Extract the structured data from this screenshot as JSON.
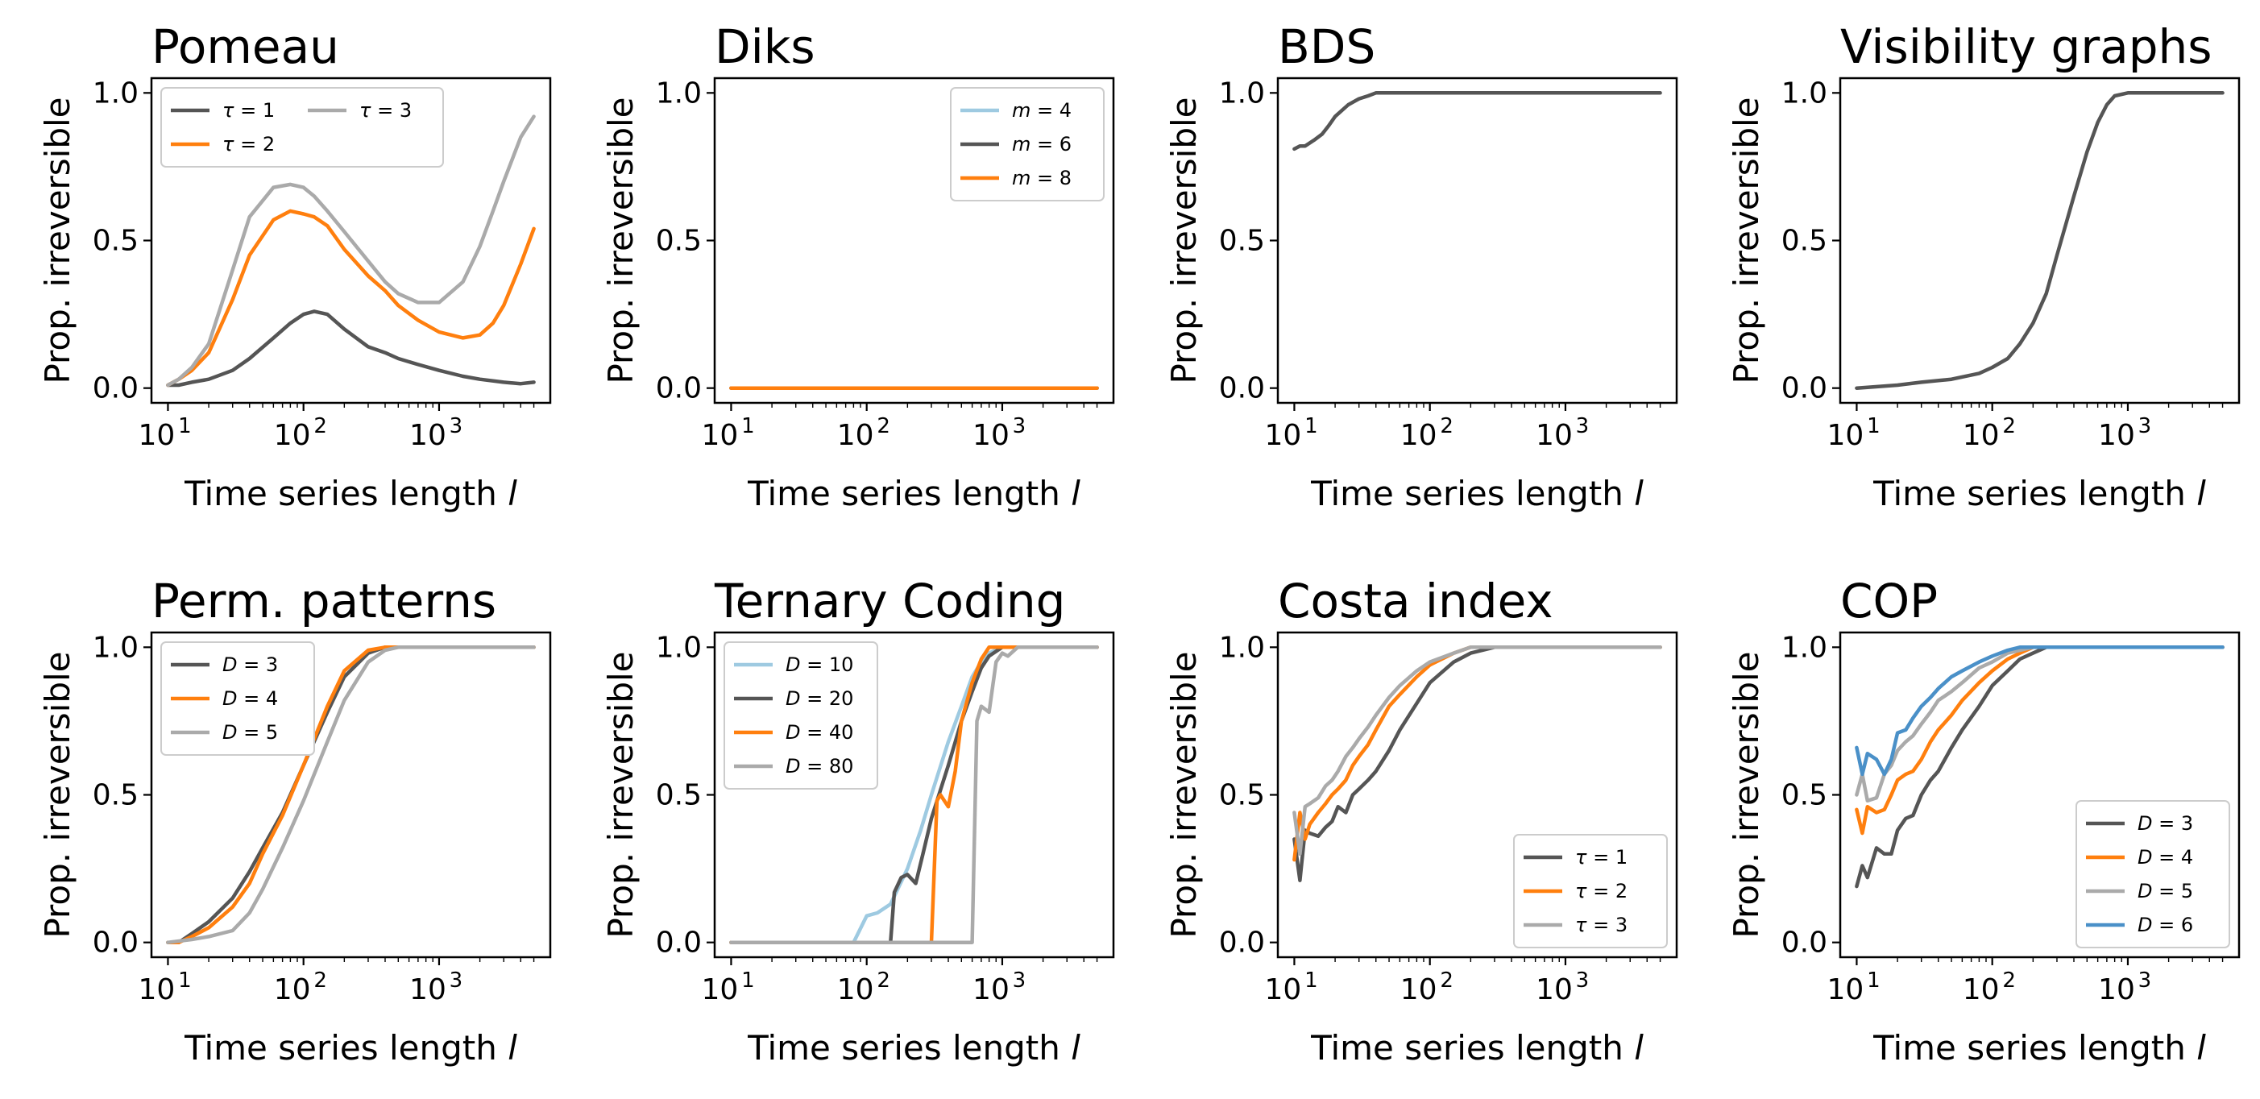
{
  "colors": {
    "dark": "#555555",
    "orange": "#ff7f0e",
    "gray": "#aaaaaa",
    "lightblue": "#9ecae1",
    "blue": "#4a90c8"
  },
  "chart_data": [
    {
      "type": "line",
      "title": "Pomeau",
      "xlabel": "Time series length l",
      "ylabel": "Prop. irreversible",
      "xscale": "log",
      "xlim": [
        10,
        5000
      ],
      "ylim": [
        0,
        1
      ],
      "yticks": [
        "0.0",
        "0.5",
        "1.0"
      ],
      "legend_position": "top-left",
      "legend_cols": 2,
      "series": [
        {
          "name": "τ = 1",
          "color": "#555555",
          "x": [
            10,
            12,
            15,
            20,
            30,
            40,
            60,
            80,
            100,
            120,
            150,
            200,
            300,
            400,
            500,
            700,
            1000,
            1500,
            2000,
            3000,
            4000,
            5000
          ],
          "y": [
            0.01,
            0.01,
            0.02,
            0.03,
            0.06,
            0.1,
            0.17,
            0.22,
            0.25,
            0.26,
            0.25,
            0.2,
            0.14,
            0.12,
            0.1,
            0.08,
            0.06,
            0.04,
            0.03,
            0.02,
            0.015,
            0.02
          ]
        },
        {
          "name": "τ = 2",
          "color": "#ff7f0e",
          "x": [
            10,
            12,
            15,
            20,
            30,
            40,
            60,
            80,
            100,
            120,
            150,
            200,
            300,
            400,
            500,
            700,
            1000,
            1500,
            2000,
            2500,
            3000,
            4000,
            5000
          ],
          "y": [
            0.01,
            0.03,
            0.06,
            0.12,
            0.3,
            0.45,
            0.57,
            0.6,
            0.59,
            0.58,
            0.55,
            0.47,
            0.38,
            0.33,
            0.28,
            0.23,
            0.19,
            0.17,
            0.18,
            0.22,
            0.28,
            0.42,
            0.54
          ]
        },
        {
          "name": "τ = 3",
          "color": "#aaaaaa",
          "x": [
            10,
            12,
            15,
            20,
            30,
            40,
            60,
            80,
            100,
            120,
            150,
            200,
            300,
            400,
            500,
            700,
            1000,
            1500,
            2000,
            2500,
            3000,
            4000,
            5000
          ],
          "y": [
            0.01,
            0.03,
            0.07,
            0.15,
            0.4,
            0.58,
            0.68,
            0.69,
            0.68,
            0.65,
            0.6,
            0.53,
            0.43,
            0.36,
            0.32,
            0.29,
            0.29,
            0.36,
            0.48,
            0.6,
            0.7,
            0.85,
            0.92
          ]
        }
      ]
    },
    {
      "type": "line",
      "title": "Diks",
      "xlabel": "Time series length l",
      "ylabel": "Prop. irreversible",
      "xscale": "log",
      "xlim": [
        10,
        5000
      ],
      "ylim": [
        0,
        1
      ],
      "yticks": [
        "0.0",
        "0.5",
        "1.0"
      ],
      "legend_position": "top-right",
      "legend_cols": 1,
      "series": [
        {
          "name": "m = 4",
          "color": "#9ecae1",
          "x": [
            10,
            5000
          ],
          "y": [
            0,
            0
          ]
        },
        {
          "name": "m = 6",
          "color": "#555555",
          "x": [
            10,
            5000
          ],
          "y": [
            0,
            0
          ]
        },
        {
          "name": "m = 8",
          "color": "#ff7f0e",
          "x": [
            10,
            5000
          ],
          "y": [
            0,
            0
          ]
        }
      ]
    },
    {
      "type": "line",
      "title": "BDS",
      "xlabel": "Time series length l",
      "ylabel": "Prop. irreversible",
      "xscale": "log",
      "xlim": [
        10,
        5000
      ],
      "ylim": [
        0,
        1
      ],
      "yticks": [
        "0.0",
        "0.5",
        "1.0"
      ],
      "legend_position": "none",
      "legend_cols": 1,
      "series": [
        {
          "name": "BDS",
          "color": "#555555",
          "x": [
            10,
            11,
            12,
            14,
            16,
            18,
            20,
            25,
            30,
            35,
            40,
            50,
            100,
            1000,
            5000
          ],
          "y": [
            0.81,
            0.82,
            0.82,
            0.84,
            0.86,
            0.89,
            0.92,
            0.96,
            0.98,
            0.99,
            1.0,
            1.0,
            1.0,
            1.0,
            1.0
          ]
        }
      ]
    },
    {
      "type": "line",
      "title": "Visibility graphs",
      "xlabel": "Time series length l",
      "ylabel": "Prop. irreversible",
      "xscale": "log",
      "xlim": [
        10,
        5000
      ],
      "ylim": [
        0,
        1
      ],
      "yticks": [
        "0.0",
        "0.5",
        "1.0"
      ],
      "legend_position": "none",
      "legend_cols": 1,
      "series": [
        {
          "name": "Visibility graphs",
          "color": "#555555",
          "x": [
            10,
            20,
            30,
            50,
            80,
            100,
            130,
            160,
            200,
            250,
            300,
            400,
            500,
            600,
            700,
            800,
            1000,
            1500,
            5000
          ],
          "y": [
            0.0,
            0.01,
            0.02,
            0.03,
            0.05,
            0.07,
            0.1,
            0.15,
            0.22,
            0.32,
            0.45,
            0.65,
            0.8,
            0.9,
            0.96,
            0.99,
            1.0,
            1.0,
            1.0
          ]
        }
      ]
    },
    {
      "type": "line",
      "title": "Perm. patterns",
      "xlabel": "Time series length l",
      "ylabel": "Prop. irreversible",
      "xscale": "log",
      "xlim": [
        10,
        5000
      ],
      "ylim": [
        0,
        1
      ],
      "yticks": [
        "0.0",
        "0.5",
        "1.0"
      ],
      "legend_position": "top-left",
      "legend_cols": 1,
      "series": [
        {
          "name": "D = 3",
          "color": "#555555",
          "x": [
            10,
            12,
            15,
            20,
            30,
            40,
            50,
            70,
            100,
            150,
            200,
            300,
            400,
            500,
            5000
          ],
          "y": [
            0.0,
            0.0,
            0.03,
            0.07,
            0.15,
            0.24,
            0.32,
            0.44,
            0.6,
            0.78,
            0.9,
            0.98,
            1.0,
            1.0,
            1.0
          ]
        },
        {
          "name": "D = 4",
          "color": "#ff7f0e",
          "x": [
            10,
            12,
            15,
            20,
            30,
            40,
            50,
            70,
            100,
            150,
            200,
            300,
            400,
            500,
            5000
          ],
          "y": [
            0.0,
            0.0,
            0.02,
            0.05,
            0.12,
            0.2,
            0.3,
            0.43,
            0.6,
            0.8,
            0.92,
            0.99,
            1.0,
            1.0,
            1.0
          ]
        },
        {
          "name": "D = 5",
          "color": "#aaaaaa",
          "x": [
            10,
            15,
            20,
            30,
            40,
            50,
            70,
            100,
            150,
            200,
            300,
            400,
            500,
            700,
            5000
          ],
          "y": [
            0.0,
            0.01,
            0.02,
            0.04,
            0.1,
            0.18,
            0.32,
            0.48,
            0.68,
            0.82,
            0.95,
            0.99,
            1.0,
            1.0,
            1.0
          ]
        }
      ]
    },
    {
      "type": "line",
      "title": "Ternary Coding",
      "xlabel": "Time series length l",
      "ylabel": "Prop. irreversible",
      "xscale": "log",
      "xlim": [
        10,
        5000
      ],
      "ylim": [
        0,
        1
      ],
      "yticks": [
        "0.0",
        "0.5",
        "1.0"
      ],
      "legend_position": "top-left",
      "legend_cols": 1,
      "series": [
        {
          "name": "D = 10",
          "color": "#9ecae1",
          "x": [
            10,
            80,
            100,
            120,
            150,
            200,
            250,
            300,
            400,
            500,
            600,
            700,
            800,
            1000,
            5000
          ],
          "y": [
            0.0,
            0.0,
            0.09,
            0.1,
            0.13,
            0.25,
            0.38,
            0.5,
            0.68,
            0.8,
            0.9,
            0.95,
            0.98,
            1.0,
            1.0
          ]
        },
        {
          "name": "D = 20",
          "color": "#555555",
          "x": [
            10,
            150,
            160,
            180,
            200,
            230,
            260,
            300,
            400,
            500,
            600,
            700,
            800,
            1000,
            5000
          ],
          "y": [
            0.0,
            0.0,
            0.17,
            0.22,
            0.23,
            0.2,
            0.3,
            0.42,
            0.6,
            0.75,
            0.85,
            0.93,
            0.97,
            1.0,
            1.0
          ]
        },
        {
          "name": "D = 40",
          "color": "#ff7f0e",
          "x": [
            10,
            300,
            330,
            350,
            400,
            450,
            500,
            600,
            700,
            800,
            900,
            1000,
            5000
          ],
          "y": [
            0.0,
            0.0,
            0.48,
            0.5,
            0.46,
            0.58,
            0.75,
            0.88,
            0.96,
            1.0,
            1.0,
            1.0,
            1.0
          ]
        },
        {
          "name": "D = 80",
          "color": "#aaaaaa",
          "x": [
            10,
            600,
            650,
            700,
            800,
            900,
            1000,
            1100,
            1300,
            1600,
            2000,
            5000
          ],
          "y": [
            0.0,
            0.0,
            0.75,
            0.8,
            0.78,
            0.95,
            0.98,
            0.97,
            1.0,
            1.0,
            1.0,
            1.0
          ]
        }
      ]
    },
    {
      "type": "line",
      "title": "Costa index",
      "xlabel": "Time series length l",
      "ylabel": "Prop. irreversible",
      "xscale": "log",
      "xlim": [
        10,
        5000
      ],
      "ylim": [
        0,
        1
      ],
      "yticks": [
        "0.0",
        "0.5",
        "1.0"
      ],
      "legend_position": "bottom-right",
      "legend_cols": 1,
      "series": [
        {
          "name": "τ = 1",
          "color": "#555555",
          "x": [
            10,
            11,
            12,
            13,
            15,
            17,
            19,
            21,
            24,
            27,
            30,
            35,
            40,
            50,
            60,
            80,
            100,
            150,
            200,
            300,
            400,
            500,
            5000
          ],
          "y": [
            0.35,
            0.21,
            0.38,
            0.37,
            0.36,
            0.39,
            0.41,
            0.46,
            0.44,
            0.5,
            0.52,
            0.55,
            0.58,
            0.65,
            0.72,
            0.81,
            0.88,
            0.95,
            0.98,
            1.0,
            1.0,
            1.0,
            1.0
          ]
        },
        {
          "name": "τ = 2",
          "color": "#ff7f0e",
          "x": [
            10,
            11,
            12,
            13,
            15,
            17,
            19,
            21,
            24,
            27,
            30,
            35,
            40,
            50,
            60,
            80,
            100,
            150,
            200,
            300,
            5000
          ],
          "y": [
            0.28,
            0.44,
            0.35,
            0.4,
            0.44,
            0.47,
            0.5,
            0.52,
            0.55,
            0.6,
            0.63,
            0.67,
            0.72,
            0.8,
            0.84,
            0.9,
            0.94,
            0.98,
            1.0,
            1.0,
            1.0
          ]
        },
        {
          "name": "τ = 3",
          "color": "#aaaaaa",
          "x": [
            10,
            11,
            12,
            13,
            15,
            17,
            19,
            21,
            24,
            27,
            30,
            35,
            40,
            50,
            60,
            80,
            100,
            150,
            200,
            300,
            5000
          ],
          "y": [
            0.44,
            0.3,
            0.46,
            0.47,
            0.49,
            0.53,
            0.55,
            0.58,
            0.63,
            0.66,
            0.69,
            0.73,
            0.77,
            0.83,
            0.87,
            0.92,
            0.95,
            0.98,
            1.0,
            1.0,
            1.0
          ]
        }
      ]
    },
    {
      "type": "line",
      "title": "COP",
      "xlabel": "Time series length l",
      "ylabel": "Prop. irreversible",
      "xscale": "log",
      "xlim": [
        10,
        5000
      ],
      "ylim": [
        0,
        1
      ],
      "yticks": [
        "0.0",
        "0.5",
        "1.0"
      ],
      "legend_position": "bottom-right",
      "legend_cols": 1,
      "series": [
        {
          "name": "D = 3",
          "color": "#555555",
          "x": [
            10,
            11,
            12,
            14,
            16,
            18,
            20,
            23,
            26,
            30,
            35,
            40,
            50,
            60,
            80,
            100,
            130,
            160,
            200,
            250,
            300,
            5000
          ],
          "y": [
            0.19,
            0.26,
            0.22,
            0.32,
            0.3,
            0.3,
            0.38,
            0.42,
            0.43,
            0.5,
            0.55,
            0.58,
            0.66,
            0.72,
            0.8,
            0.87,
            0.92,
            0.96,
            0.98,
            1.0,
            1.0,
            1.0
          ]
        },
        {
          "name": "D = 4",
          "color": "#ff7f0e",
          "x": [
            10,
            11,
            12,
            14,
            16,
            18,
            20,
            23,
            26,
            30,
            35,
            40,
            50,
            60,
            80,
            100,
            130,
            160,
            200,
            5000
          ],
          "y": [
            0.45,
            0.37,
            0.46,
            0.44,
            0.45,
            0.5,
            0.55,
            0.57,
            0.58,
            0.62,
            0.68,
            0.72,
            0.77,
            0.82,
            0.88,
            0.92,
            0.96,
            0.98,
            1.0,
            1.0
          ]
        },
        {
          "name": "D = 5",
          "color": "#aaaaaa",
          "x": [
            10,
            11,
            12,
            14,
            16,
            18,
            20,
            23,
            26,
            30,
            35,
            40,
            50,
            60,
            80,
            100,
            130,
            160,
            200,
            5000
          ],
          "y": [
            0.5,
            0.57,
            0.48,
            0.49,
            0.57,
            0.6,
            0.65,
            0.68,
            0.7,
            0.74,
            0.78,
            0.82,
            0.85,
            0.88,
            0.93,
            0.95,
            0.98,
            0.99,
            1.0,
            1.0
          ]
        },
        {
          "name": "D = 6",
          "color": "#4a90c8",
          "x": [
            10,
            11,
            12,
            14,
            16,
            18,
            20,
            23,
            26,
            30,
            35,
            40,
            50,
            60,
            80,
            100,
            130,
            160,
            200,
            5000
          ],
          "y": [
            0.66,
            0.57,
            0.64,
            0.62,
            0.57,
            0.62,
            0.71,
            0.72,
            0.76,
            0.8,
            0.83,
            0.86,
            0.9,
            0.92,
            0.95,
            0.97,
            0.99,
            1.0,
            1.0,
            1.0
          ]
        }
      ]
    }
  ]
}
